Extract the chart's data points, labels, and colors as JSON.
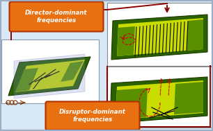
{
  "bg_color": "#d8e8f4",
  "border_color": "#9aafc5",
  "box1_text": "Director-dominant\nfrequencies",
  "box2_text": "Disruptor-dominant\nfrequencies",
  "box_face_color": "#e87010",
  "box_edge_color": "#b03000",
  "box_text_color": "white",
  "arrow_color": "#8b0000",
  "chip_dark_green": "#2a6000",
  "chip_mid_green": "#5a9000",
  "chip_yellow": "#c8dc00",
  "chip_black": "#0a0a0a",
  "red_dashed": "#cc0000",
  "font_size_box": 6.2,
  "left_panel_facecolor": "#ffffff",
  "left_panel_edgecolor": "#8899aa",
  "right_panel_edgecolor": "#888888",
  "blue_overlay": "#8090cc",
  "coil_color": "#7a3000"
}
